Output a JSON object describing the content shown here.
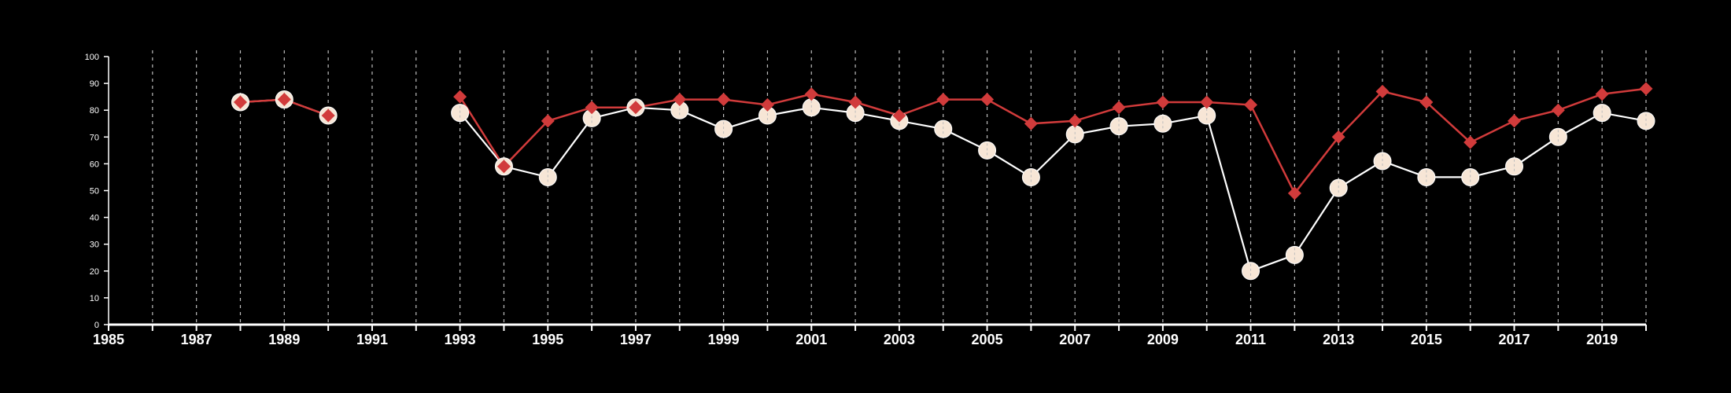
{
  "colors": {
    "background": "#000000",
    "axis": "#ffffff",
    "grid": "#bdbdbd",
    "series_a": "#d13b3b",
    "series_b_line": "#ffffff",
    "series_b_marker": "#f7e6d6"
  },
  "chart_data": {
    "type": "line",
    "title": "",
    "xlabel": "",
    "ylabel": "",
    "xlim": [
      1985,
      2020
    ],
    "ylim": [
      0,
      100
    ],
    "y_ticks": [
      0,
      10,
      20,
      30,
      40,
      50,
      60,
      70,
      80,
      90,
      100
    ],
    "x_tick_labels": [
      "1985",
      "1987",
      "1989",
      "1991",
      "1993",
      "1995",
      "1997",
      "1999",
      "2001",
      "2003",
      "2005",
      "2007",
      "2009",
      "2011",
      "2013",
      "2015",
      "2017",
      "2019"
    ],
    "grid": "vertical dashed lines at each year",
    "legend": "none",
    "series": [
      {
        "marker": "diamond",
        "points": [
          [
            1988,
            83
          ],
          [
            1989,
            84
          ],
          [
            1990,
            78
          ],
          [
            1993,
            85
          ],
          [
            1994,
            59
          ],
          [
            1995,
            76
          ],
          [
            1996,
            81
          ],
          [
            1997,
            81
          ],
          [
            1998,
            84
          ],
          [
            1999,
            84
          ],
          [
            2000,
            82
          ],
          [
            2001,
            86
          ],
          [
            2002,
            83
          ],
          [
            2003,
            78
          ],
          [
            2004,
            84
          ],
          [
            2005,
            84
          ],
          [
            2006,
            75
          ],
          [
            2007,
            76
          ],
          [
            2008,
            81
          ],
          [
            2009,
            83
          ],
          [
            2010,
            83
          ],
          [
            2011,
            82
          ],
          [
            2012,
            49
          ],
          [
            2013,
            70
          ],
          [
            2014,
            87
          ],
          [
            2015,
            83
          ],
          [
            2016,
            68
          ],
          [
            2017,
            76
          ],
          [
            2018,
            80
          ],
          [
            2019,
            86
          ],
          [
            2020,
            88
          ]
        ]
      },
      {
        "marker": "circle",
        "points": [
          [
            1988,
            83
          ],
          [
            1989,
            84
          ],
          [
            1990,
            78
          ],
          [
            1993,
            79
          ],
          [
            1994,
            59
          ],
          [
            1995,
            55
          ],
          [
            1996,
            77
          ],
          [
            1997,
            81
          ],
          [
            1998,
            80
          ],
          [
            1999,
            73
          ],
          [
            2000,
            78
          ],
          [
            2001,
            81
          ],
          [
            2002,
            79
          ],
          [
            2003,
            76
          ],
          [
            2004,
            73
          ],
          [
            2005,
            65
          ],
          [
            2006,
            55
          ],
          [
            2007,
            71
          ],
          [
            2008,
            74
          ],
          [
            2009,
            75
          ],
          [
            2010,
            78
          ],
          [
            2011,
            20
          ],
          [
            2012,
            26
          ],
          [
            2013,
            51
          ],
          [
            2014,
            61
          ],
          [
            2015,
            55
          ],
          [
            2016,
            55
          ],
          [
            2017,
            59
          ],
          [
            2018,
            70
          ],
          [
            2019,
            79
          ],
          [
            2020,
            76
          ]
        ]
      }
    ]
  }
}
